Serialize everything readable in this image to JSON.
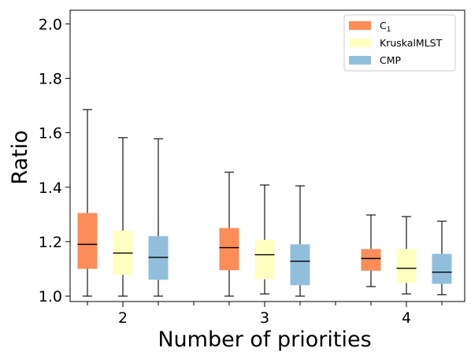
{
  "chart_data": {
    "type": "boxplot",
    "xlabel": "Number of priorities",
    "ylabel": "Ratio",
    "categories": [
      "2",
      "3",
      "4"
    ],
    "ylim": [
      0.98,
      2.05
    ],
    "yticks": [
      "1.0",
      "1.2",
      "1.4",
      "1.6",
      "1.8",
      "2.0"
    ],
    "ytick_values": [
      1.0,
      1.2,
      1.4,
      1.6,
      1.8,
      2.0
    ],
    "grid": false,
    "legend_position": "top-right",
    "legend": [
      {
        "main": "C",
        "sub": "1"
      },
      {
        "main": "KruskalMLST",
        "sub": ""
      },
      {
        "main": "CMP",
        "sub": ""
      }
    ],
    "series": [
      {
        "color": "#fc8d59",
        "boxes": [
          {
            "whislo": 1.0,
            "q1": 1.1,
            "med": 1.19,
            "q3": 1.305,
            "whishi": 1.685
          },
          {
            "whislo": 1.0,
            "q1": 1.095,
            "med": 1.178,
            "q3": 1.25,
            "whishi": 1.455
          },
          {
            "whislo": 1.035,
            "q1": 1.093,
            "med": 1.138,
            "q3": 1.173,
            "whishi": 1.298
          }
        ]
      },
      {
        "color": "#ffffbf",
        "boxes": [
          {
            "whislo": 1.0,
            "q1": 1.078,
            "med": 1.158,
            "q3": 1.24,
            "whishi": 1.582
          },
          {
            "whislo": 1.008,
            "q1": 1.062,
            "med": 1.152,
            "q3": 1.206,
            "whishi": 1.408
          },
          {
            "whislo": 1.008,
            "q1": 1.048,
            "med": 1.102,
            "q3": 1.173,
            "whishi": 1.292
          }
        ]
      },
      {
        "color": "#91bfdb",
        "boxes": [
          {
            "whislo": 1.0,
            "q1": 1.06,
            "med": 1.142,
            "q3": 1.22,
            "whishi": 1.578
          },
          {
            "whislo": 1.0,
            "q1": 1.04,
            "med": 1.128,
            "q3": 1.19,
            "whishi": 1.405
          },
          {
            "whislo": 1.005,
            "q1": 1.045,
            "med": 1.088,
            "q3": 1.155,
            "whishi": 1.275
          }
        ]
      }
    ]
  }
}
